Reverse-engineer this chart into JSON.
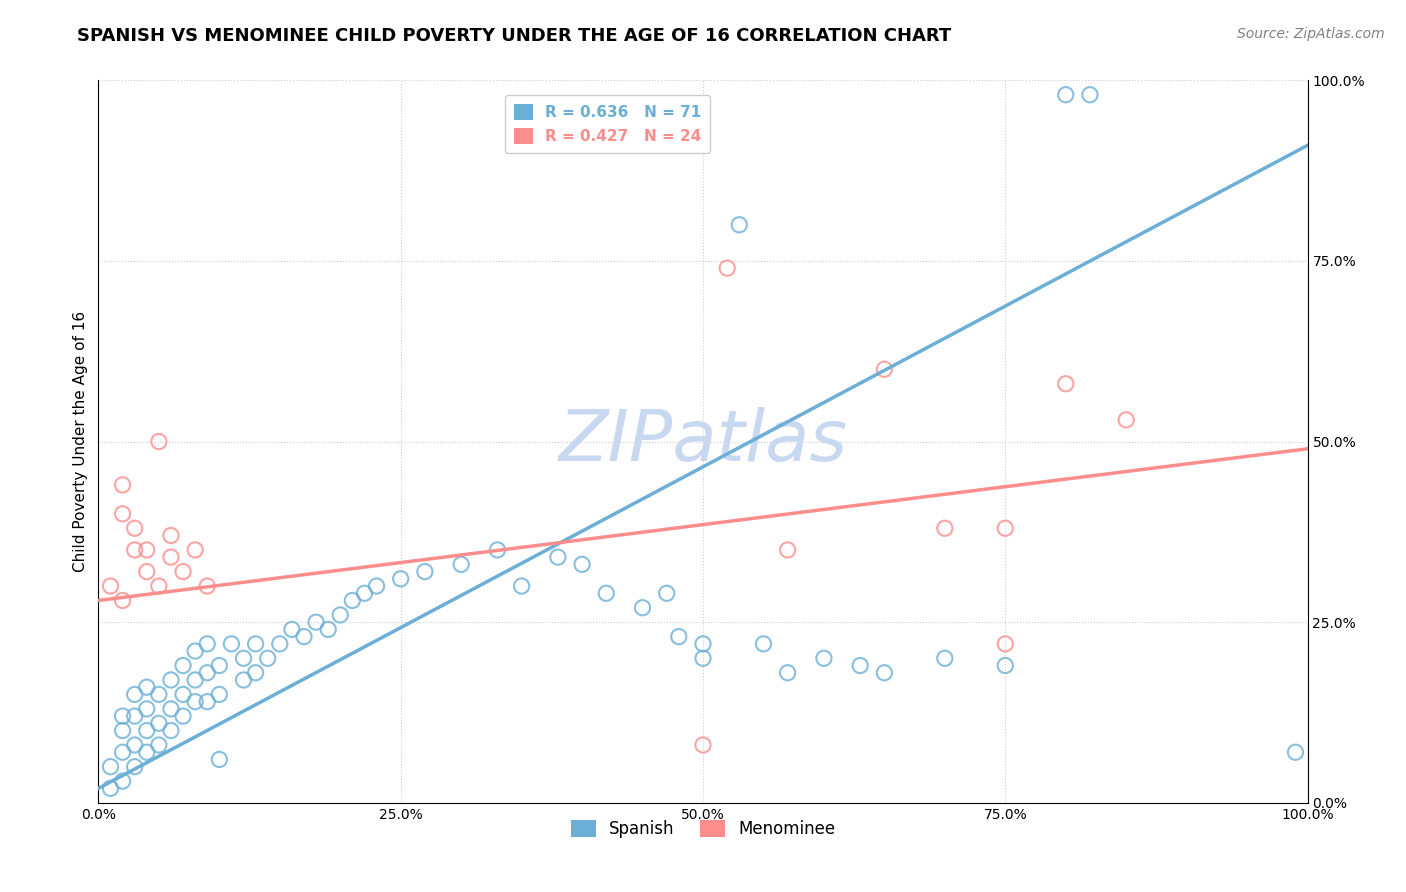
{
  "title": "SPANISH VS MENOMINEE CHILD POVERTY UNDER THE AGE OF 16 CORRELATION CHART",
  "source": "Source: ZipAtlas.com",
  "ylabel": "Child Poverty Under the Age of 16",
  "xlabel": "",
  "xlim": [
    0,
    1
  ],
  "ylim": [
    0,
    1
  ],
  "xtick_labels": [
    "0.0%",
    "25.0%",
    "50.0%",
    "75.0%",
    "100.0%"
  ],
  "xtick_positions": [
    0,
    0.25,
    0.5,
    0.75,
    1.0
  ],
  "ytick_labels": [
    "0.0%",
    "25.0%",
    "50.0%",
    "75.0%",
    "100.0%"
  ],
  "ytick_positions": [
    0,
    0.25,
    0.5,
    0.75,
    1.0
  ],
  "spanish_color": "#6baed6",
  "menominee_color": "#fc8d8d",
  "spanish_R": 0.636,
  "spanish_N": 71,
  "menominee_R": 0.427,
  "menominee_N": 24,
  "spanish_line_x": [
    0.0,
    1.0
  ],
  "spanish_line_y": [
    0.02,
    0.91
  ],
  "menominee_line_x": [
    0.0,
    1.0
  ],
  "menominee_line_y": [
    0.28,
    0.49
  ],
  "spanish_points": [
    [
      0.01,
      0.02
    ],
    [
      0.01,
      0.05
    ],
    [
      0.02,
      0.03
    ],
    [
      0.02,
      0.07
    ],
    [
      0.02,
      0.1
    ],
    [
      0.02,
      0.12
    ],
    [
      0.03,
      0.05
    ],
    [
      0.03,
      0.08
    ],
    [
      0.03,
      0.12
    ],
    [
      0.03,
      0.15
    ],
    [
      0.04,
      0.07
    ],
    [
      0.04,
      0.1
    ],
    [
      0.04,
      0.13
    ],
    [
      0.04,
      0.16
    ],
    [
      0.05,
      0.08
    ],
    [
      0.05,
      0.11
    ],
    [
      0.05,
      0.15
    ],
    [
      0.06,
      0.1
    ],
    [
      0.06,
      0.13
    ],
    [
      0.06,
      0.17
    ],
    [
      0.07,
      0.12
    ],
    [
      0.07,
      0.15
    ],
    [
      0.07,
      0.19
    ],
    [
      0.08,
      0.14
    ],
    [
      0.08,
      0.17
    ],
    [
      0.08,
      0.21
    ],
    [
      0.09,
      0.14
    ],
    [
      0.09,
      0.18
    ],
    [
      0.09,
      0.22
    ],
    [
      0.1,
      0.06
    ],
    [
      0.1,
      0.15
    ],
    [
      0.1,
      0.19
    ],
    [
      0.11,
      0.22
    ],
    [
      0.12,
      0.17
    ],
    [
      0.12,
      0.2
    ],
    [
      0.13,
      0.18
    ],
    [
      0.13,
      0.22
    ],
    [
      0.14,
      0.2
    ],
    [
      0.15,
      0.22
    ],
    [
      0.16,
      0.24
    ],
    [
      0.17,
      0.23
    ],
    [
      0.18,
      0.25
    ],
    [
      0.19,
      0.24
    ],
    [
      0.2,
      0.26
    ],
    [
      0.21,
      0.28
    ],
    [
      0.22,
      0.29
    ],
    [
      0.23,
      0.3
    ],
    [
      0.25,
      0.31
    ],
    [
      0.27,
      0.32
    ],
    [
      0.3,
      0.33
    ],
    [
      0.33,
      0.35
    ],
    [
      0.35,
      0.3
    ],
    [
      0.38,
      0.34
    ],
    [
      0.4,
      0.33
    ],
    [
      0.42,
      0.29
    ],
    [
      0.45,
      0.27
    ],
    [
      0.47,
      0.29
    ],
    [
      0.48,
      0.23
    ],
    [
      0.5,
      0.22
    ],
    [
      0.5,
      0.2
    ],
    [
      0.53,
      0.8
    ],
    [
      0.55,
      0.22
    ],
    [
      0.57,
      0.18
    ],
    [
      0.6,
      0.2
    ],
    [
      0.63,
      0.19
    ],
    [
      0.65,
      0.18
    ],
    [
      0.7,
      0.2
    ],
    [
      0.75,
      0.19
    ],
    [
      0.8,
      0.98
    ],
    [
      0.82,
      0.98
    ],
    [
      0.99,
      0.07
    ]
  ],
  "menominee_points": [
    [
      0.01,
      0.3
    ],
    [
      0.02,
      0.28
    ],
    [
      0.02,
      0.4
    ],
    [
      0.02,
      0.44
    ],
    [
      0.03,
      0.35
    ],
    [
      0.03,
      0.38
    ],
    [
      0.04,
      0.32
    ],
    [
      0.04,
      0.35
    ],
    [
      0.05,
      0.3
    ],
    [
      0.05,
      0.5
    ],
    [
      0.06,
      0.34
    ],
    [
      0.06,
      0.37
    ],
    [
      0.07,
      0.32
    ],
    [
      0.08,
      0.35
    ],
    [
      0.09,
      0.3
    ],
    [
      0.52,
      0.74
    ],
    [
      0.57,
      0.35
    ],
    [
      0.65,
      0.6
    ],
    [
      0.7,
      0.38
    ],
    [
      0.75,
      0.38
    ],
    [
      0.8,
      0.58
    ],
    [
      0.85,
      0.53
    ],
    [
      0.5,
      0.08
    ],
    [
      0.75,
      0.22
    ]
  ],
  "watermark_text": "ZIPatlas",
  "watermark_color": "#c8d8f0",
  "background_color": "#ffffff",
  "grid_color": "#cccccc",
  "title_fontsize": 13,
  "axis_label_fontsize": 11,
  "tick_fontsize": 10,
  "legend_fontsize": 11,
  "source_fontsize": 10
}
